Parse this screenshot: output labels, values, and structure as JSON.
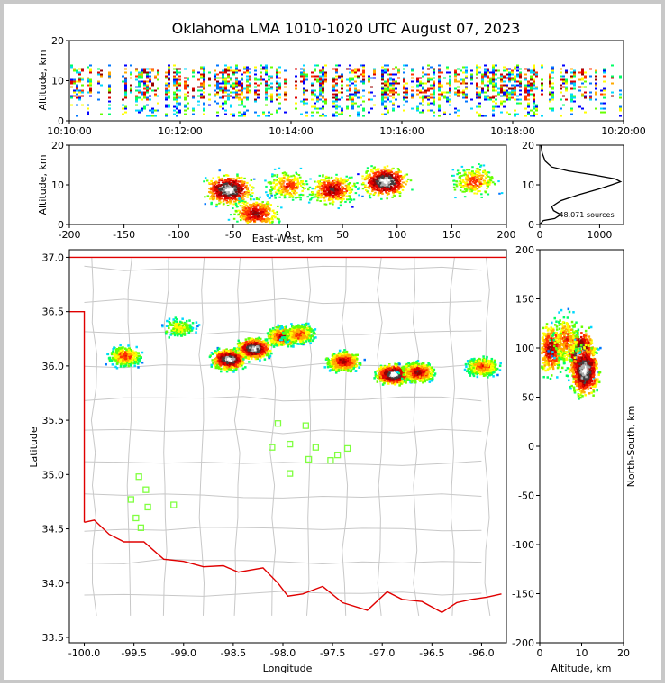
{
  "title": "Oklahoma LMA 1010-1020 UTC August 07, 2023",
  "chart_data": [
    {
      "id": "time_height",
      "type": "heatmap",
      "xlabel": "",
      "ylabel": "Altitude, km",
      "x_ticks": [
        "10:10:00",
        "10:12:00",
        "10:14:00",
        "10:16:00",
        "10:18:00",
        "10:20:00"
      ],
      "xlim_minutes": [
        0,
        10
      ],
      "ylim": [
        0,
        20
      ],
      "y_ticks": [
        0,
        10,
        20
      ],
      "source_band_km": [
        1,
        14
      ],
      "dense_core_km": [
        5,
        13
      ]
    },
    {
      "id": "ew_height",
      "type": "heatmap",
      "xlabel": "East-West, km",
      "ylabel": "Altitude, km",
      "xlim": [
        -200,
        200
      ],
      "ylim": [
        0,
        20
      ],
      "x_ticks": [
        -200,
        -150,
        -100,
        -50,
        0,
        50,
        100,
        150,
        200
      ],
      "y_ticks": [
        0,
        10,
        20
      ],
      "clusters": [
        {
          "x_center": -55,
          "z_center": 9,
          "intensity": "peak"
        },
        {
          "x_center": -30,
          "z_center": 3,
          "intensity": "high"
        },
        {
          "x_center": 0,
          "z_center": 10,
          "intensity": "medium"
        },
        {
          "x_center": 40,
          "z_center": 9,
          "intensity": "high"
        },
        {
          "x_center": 88,
          "z_center": 11,
          "intensity": "peak"
        },
        {
          "x_center": 170,
          "z_center": 11,
          "intensity": "medium"
        }
      ]
    },
    {
      "id": "altitude_histogram",
      "type": "line",
      "xlim": [
        0,
        1400
      ],
      "ylim": [
        0,
        20
      ],
      "x_ticks": [
        0,
        1000
      ],
      "y_ticks": [
        0,
        10,
        20
      ],
      "annotation": "48,071 sources",
      "profile": [
        {
          "z": 0.0,
          "count": 0
        },
        {
          "z": 1.0,
          "count": 60
        },
        {
          "z": 1.5,
          "count": 250
        },
        {
          "z": 2.5,
          "count": 350
        },
        {
          "z": 3.5,
          "count": 230
        },
        {
          "z": 4.5,
          "count": 200
        },
        {
          "z": 6.0,
          "count": 350
        },
        {
          "z": 7.5,
          "count": 650
        },
        {
          "z": 9.0,
          "count": 1000
        },
        {
          "z": 10.0,
          "count": 1200
        },
        {
          "z": 10.8,
          "count": 1350
        },
        {
          "z": 11.5,
          "count": 1260
        },
        {
          "z": 12.5,
          "count": 900
        },
        {
          "z": 13.5,
          "count": 480
        },
        {
          "z": 14.5,
          "count": 200
        },
        {
          "z": 16.0,
          "count": 90
        },
        {
          "z": 18.0,
          "count": 40
        },
        {
          "z": 20.0,
          "count": 20
        }
      ]
    },
    {
      "id": "plan_view_map",
      "type": "heatmap",
      "xlabel": "Longitude",
      "ylabel": "Latitude",
      "xlim": [
        -100.15,
        -95.75
      ],
      "ylim": [
        33.45,
        37.07
      ],
      "x_ticks": [
        -100.0,
        -99.5,
        -99.0,
        -98.5,
        -98.0,
        -97.5,
        -97.0,
        -96.5,
        -96.0
      ],
      "y_ticks": [
        33.5,
        34.0,
        34.5,
        35.0,
        35.5,
        36.0,
        36.5,
        37.0
      ],
      "state_border_color": "#e00000",
      "county_line_color": "#c8c8c8",
      "station_color": "#80ff40",
      "stations": [
        {
          "lon": -98.05,
          "lat": 35.47
        },
        {
          "lon": -97.77,
          "lat": 35.45
        },
        {
          "lon": -98.11,
          "lat": 35.25
        },
        {
          "lon": -97.93,
          "lat": 35.28
        },
        {
          "lon": -97.67,
          "lat": 35.25
        },
        {
          "lon": -97.35,
          "lat": 35.24
        },
        {
          "lon": -97.74,
          "lat": 35.14
        },
        {
          "lon": -97.52,
          "lat": 35.13
        },
        {
          "lon": -97.45,
          "lat": 35.18
        },
        {
          "lon": -97.93,
          "lat": 35.01
        },
        {
          "lon": -99.45,
          "lat": 34.98
        },
        {
          "lon": -99.38,
          "lat": 34.86
        },
        {
          "lon": -99.53,
          "lat": 34.77
        },
        {
          "lon": -99.36,
          "lat": 34.7
        },
        {
          "lon": -99.1,
          "lat": 34.72
        },
        {
          "lon": -99.48,
          "lat": 34.6
        },
        {
          "lon": -99.43,
          "lat": 34.51
        }
      ],
      "clusters": [
        {
          "lon": -98.55,
          "lat": 36.07,
          "intensity": "peak"
        },
        {
          "lon": -98.3,
          "lat": 36.17,
          "intensity": "peak"
        },
        {
          "lon": -98.0,
          "lat": 36.28,
          "intensity": "high"
        },
        {
          "lon": -97.85,
          "lat": 36.3,
          "intensity": "medium"
        },
        {
          "lon": -97.4,
          "lat": 36.05,
          "intensity": "high"
        },
        {
          "lon": -96.9,
          "lat": 35.93,
          "intensity": "peak"
        },
        {
          "lon": -96.65,
          "lat": 35.95,
          "intensity": "high"
        },
        {
          "lon": -99.6,
          "lat": 36.1,
          "intensity": "medium"
        },
        {
          "lon": -99.05,
          "lat": 36.36,
          "intensity": "low"
        },
        {
          "lon": -96.0,
          "lat": 36.0,
          "intensity": "medium"
        }
      ]
    },
    {
      "id": "ns_height",
      "type": "heatmap",
      "xlabel": "Altitude, km",
      "ylabel": "North-South, km",
      "xlim": [
        0,
        20
      ],
      "ylim": [
        -200,
        200
      ],
      "x_ticks": [
        0,
        10,
        20
      ],
      "y_ticks": [
        -200,
        -150,
        -100,
        -50,
        0,
        50,
        100,
        150,
        200
      ],
      "clusters": [
        {
          "z_center": 2.5,
          "y_center": 100,
          "intensity": "high"
        },
        {
          "z_center": 9.5,
          "y_center": 95,
          "intensity": "peak"
        },
        {
          "z_center": 10.5,
          "y_center": 78,
          "intensity": "peak"
        },
        {
          "z_center": 6,
          "y_center": 110,
          "intensity": "medium"
        }
      ]
    }
  ]
}
